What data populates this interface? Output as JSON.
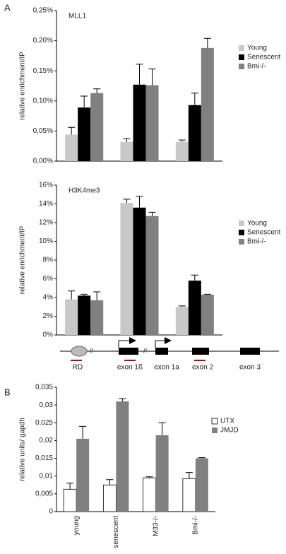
{
  "panels": [
    "A",
    "B"
  ],
  "diagram": {
    "labels": [
      "RD",
      "exon 1ß",
      "exon 1a",
      "exon 2",
      "exon 3"
    ]
  },
  "chart_data": [
    {
      "type": "bar",
      "annotation": "MLL1",
      "ylabel": "relative enrichment/IP",
      "categories": [
        null,
        null,
        null
      ],
      "series": [
        {
          "name": "Young",
          "color": "#c8c8c8",
          "values": [
            0.044,
            0.032,
            0.032
          ],
          "errors": [
            0.012,
            0.005,
            0.003
          ]
        },
        {
          "name": "Senescent",
          "color": "#000000",
          "values": [
            0.089,
            0.127,
            0.093
          ],
          "errors": [
            0.019,
            0.034,
            0.02
          ]
        },
        {
          "name": "Bmi-/-",
          "color": "#808080",
          "values": [
            0.113,
            0.126,
            0.188
          ],
          "errors": [
            0.007,
            0.027,
            0.016
          ]
        }
      ],
      "ylim": [
        0,
        0.25
      ],
      "yticks": [
        {
          "value": 0,
          "label": "0,00%"
        },
        {
          "value": 0.05,
          "label": "0,05%"
        },
        {
          "value": 0.1,
          "label": "0,10%"
        },
        {
          "value": 0.15,
          "label": "0,15%"
        },
        {
          "value": 0.2,
          "label": "0,20%"
        },
        {
          "value": 0.25,
          "label": "0,25%"
        }
      ]
    },
    {
      "type": "bar",
      "annotation": "H3K4me3",
      "ylabel": "relative enrichment/IP",
      "categories": [
        null,
        null,
        null
      ],
      "series": [
        {
          "name": "Young",
          "color": "#c8c8c8",
          "values": [
            3.8,
            14.1,
            3.0
          ],
          "errors": [
            0.9,
            0.4,
            0.1
          ]
        },
        {
          "name": "Senescent",
          "color": "#000000",
          "values": [
            4.2,
            13.6,
            5.8
          ],
          "errors": [
            0.15,
            1.2,
            0.6
          ]
        },
        {
          "name": "Bmi-/-",
          "color": "#808080",
          "values": [
            3.7,
            12.7,
            4.3
          ],
          "errors": [
            0.9,
            0.4,
            0.05
          ]
        }
      ],
      "ylim": [
        0,
        16
      ],
      "yticks": [
        {
          "value": 0,
          "label": "0%"
        },
        {
          "value": 2,
          "label": "2%"
        },
        {
          "value": 4,
          "label": "4%"
        },
        {
          "value": 6,
          "label": "6%"
        },
        {
          "value": 8,
          "label": "8%"
        },
        {
          "value": 10,
          "label": "10%"
        },
        {
          "value": 12,
          "label": "12%"
        },
        {
          "value": 14,
          "label": "14%"
        },
        {
          "value": 16,
          "label": "16%"
        }
      ]
    },
    {
      "type": "bar",
      "ylabel": "relative units/ gapdh",
      "categories": [
        "young",
        "senescent",
        "M33-/-",
        "Bmi-/-"
      ],
      "series": [
        {
          "name": "UTX",
          "color": "#ffffff",
          "values": [
            0.0063,
            0.0075,
            0.0095,
            0.0093
          ],
          "errors": [
            0.0017,
            0.0015,
            0.0003,
            0.0017
          ]
        },
        {
          "name": "JMJD",
          "color": "#808080",
          "values": [
            0.0205,
            0.031,
            0.0215,
            0.015
          ],
          "errors": [
            0.0035,
            0.0008,
            0.0035,
            0.0002
          ]
        }
      ],
      "ylim": [
        0,
        0.035
      ],
      "yticks": [
        0,
        {
          "value": 0.005,
          "label": "0,005"
        },
        {
          "value": 0.01,
          "label": "0,01"
        },
        {
          "value": 0.015,
          "label": "0,015"
        },
        {
          "value": 0.02,
          "label": "0,02"
        },
        {
          "value": 0.025,
          "label": "0,025"
        },
        {
          "value": 0.03,
          "label": "0,03"
        },
        {
          "value": 0.035,
          "label": "0,035"
        }
      ]
    }
  ]
}
